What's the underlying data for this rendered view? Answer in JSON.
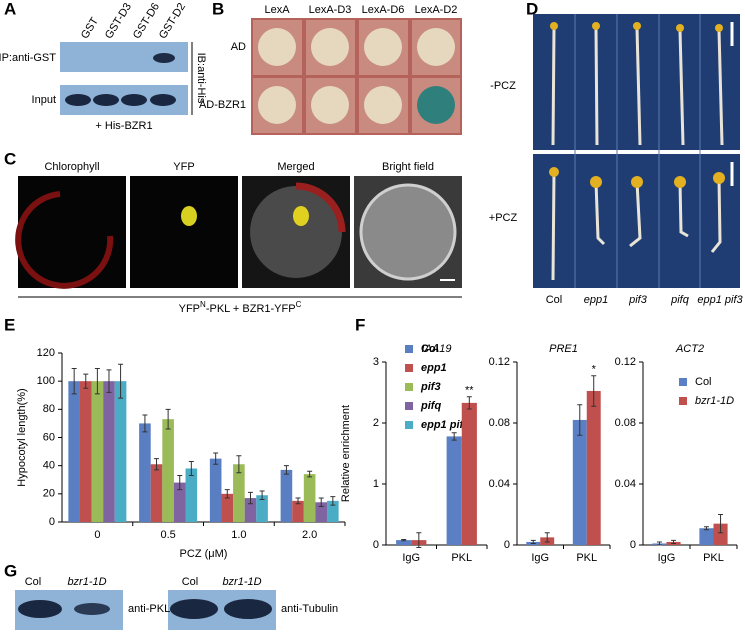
{
  "panel_labels": [
    "A",
    "B",
    "C",
    "D",
    "E",
    "F",
    "G"
  ],
  "panel_a": {
    "lanes": [
      "GST",
      "GST-D3",
      "GST-D6",
      "GST-D2"
    ],
    "rows": [
      "IP:anti-GST",
      "Input"
    ],
    "side_label": "IB:anti-His",
    "footer": "+ His-BZR1"
  },
  "panel_b": {
    "columns": [
      "LexA",
      "LexA-D3",
      "LexA-D6",
      "LexA-D2"
    ],
    "rows": [
      "AD",
      "AD-BZR1"
    ]
  },
  "panel_c": {
    "channels": [
      "Chlorophyll",
      "YFP",
      "Merged",
      "Bright field"
    ],
    "caption": [
      "YFP",
      "N",
      "-PKL + BZR1-YFP",
      "C"
    ]
  },
  "panel_d": {
    "rows": [
      "-PCZ",
      "+PCZ"
    ],
    "genotypes": [
      "Col",
      "epp1",
      "pif3",
      "pifq",
      "epp1 pif3"
    ]
  },
  "panel_g": {
    "lanes": [
      "Col",
      "bzr1-1D",
      "Col",
      "bzr1-1D"
    ],
    "antibodies": [
      "anti-PKL",
      "anti-Tubulin"
    ]
  },
  "chart_data": [
    {
      "type": "bar",
      "categories": [
        "0",
        "0.5",
        "1.0",
        "2.0"
      ],
      "series": [
        {
          "name": "Col",
          "color": "#5a7ec2",
          "values": [
            100,
            70,
            45,
            37
          ],
          "errors": [
            9,
            6,
            4,
            3
          ]
        },
        {
          "name": "epp1",
          "color": "#c0504d",
          "values": [
            100,
            41,
            20,
            15
          ],
          "errors": [
            5,
            4,
            3,
            2
          ]
        },
        {
          "name": "pif3",
          "color": "#9bbb59",
          "values": [
            100,
            73,
            41,
            34
          ],
          "errors": [
            9,
            7,
            6,
            2
          ]
        },
        {
          "name": "pifq",
          "color": "#8064a2",
          "values": [
            100,
            28,
            17,
            14
          ],
          "errors": [
            8,
            5,
            4,
            3
          ]
        },
        {
          "name": "epp1 pif3",
          "color": "#4bacc6",
          "values": [
            100,
            38,
            19,
            15
          ],
          "errors": [
            12,
            5,
            3,
            3
          ]
        }
      ],
      "ylim": [
        0,
        120
      ],
      "yticks": [
        0,
        20,
        40,
        60,
        80,
        100,
        120
      ],
      "y_label": "Hypocotyl length(%)",
      "x_label": "PCZ (μM)",
      "legend": "right"
    },
    {
      "type": "bar",
      "title": "IAA19",
      "categories": [
        "IgG",
        "PKL"
      ],
      "series": [
        {
          "color": "#5b7fc4",
          "values": [
            0.08,
            1.78
          ],
          "errors": [
            0.01,
            0.06
          ]
        },
        {
          "color": "#c0504d",
          "values": [
            0.08,
            2.33
          ],
          "errors": [
            0.12,
            0.1
          ]
        }
      ],
      "ylim": [
        0,
        3
      ],
      "yticks": [
        0,
        1,
        2,
        3
      ],
      "y_label": "Relative enrichment",
      "annotations": [
        null,
        "**"
      ]
    },
    {
      "type": "bar",
      "title": "PRE1",
      "categories": [
        "IgG",
        "PKL"
      ],
      "series": [
        {
          "color": "#5b7fc4",
          "values": [
            0.002,
            0.082
          ],
          "errors": [
            0.001,
            0.01
          ]
        },
        {
          "color": "#c0504d",
          "values": [
            0.005,
            0.101
          ],
          "errors": [
            0.003,
            0.01
          ]
        }
      ],
      "ylim": [
        0,
        0.12
      ],
      "yticks": [
        0,
        0.04,
        0.08,
        0.12
      ],
      "annotations": [
        null,
        "*"
      ]
    },
    {
      "type": "bar",
      "title": "ACT2",
      "categories": [
        "IgG",
        "PKL"
      ],
      "series": [
        {
          "name": "Col",
          "color": "#5b7fc4",
          "values": [
            0.001,
            0.011
          ],
          "errors": [
            0.001,
            0.001
          ]
        },
        {
          "name": "bzr1-1D",
          "color": "#c0504d",
          "values": [
            0.002,
            0.014
          ],
          "errors": [
            0.001,
            0.006
          ]
        }
      ],
      "ylim": [
        0,
        0.12
      ],
      "yticks": [
        0,
        0.04,
        0.08,
        0.12
      ],
      "legend": "upper right"
    }
  ]
}
